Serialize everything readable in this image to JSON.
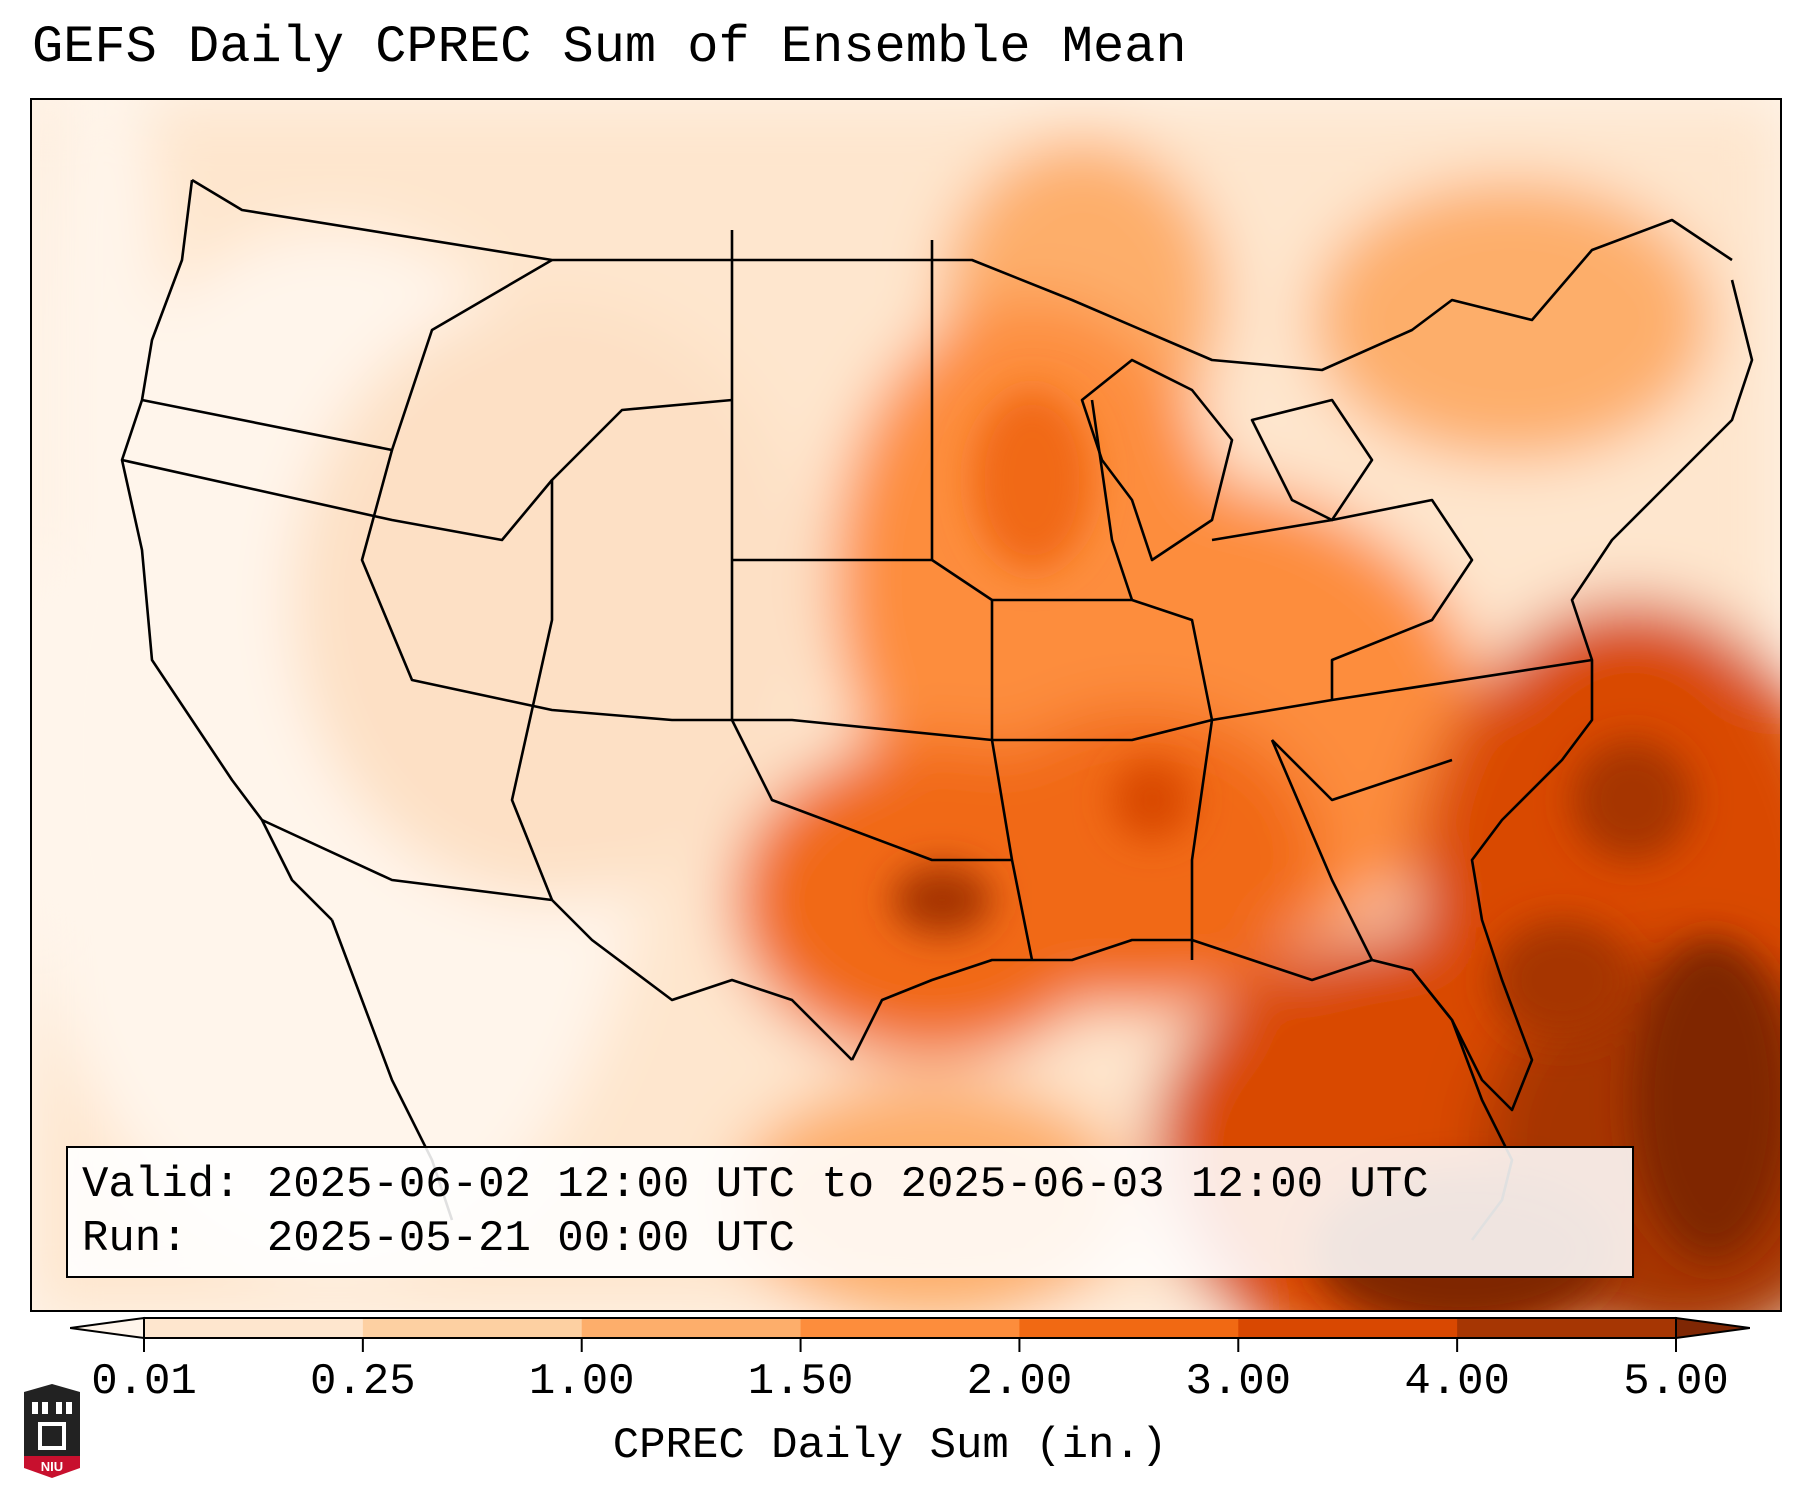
{
  "title": "GEFS Daily CPREC Sum of Ensemble Mean",
  "info": {
    "valid_label": "Valid:",
    "valid_value": "2025-06-02 12:00 UTC to 2025-06-03 12:00 UTC",
    "run_label": "Run:",
    "run_value": "2025-05-21 00:00 UTC"
  },
  "colorbar": {
    "label": "CPREC Daily Sum (in.)",
    "ticks": [
      "0.01",
      "0.25",
      "1.00",
      "1.50",
      "2.00",
      "3.00",
      "4.00",
      "5.00"
    ],
    "colors": [
      "#fff5eb",
      "#fee6ce",
      "#fdd0a2",
      "#fdae6b",
      "#fd8d3c",
      "#f16913",
      "#d94801",
      "#a63603",
      "#7f2704"
    ]
  },
  "logo": {
    "text": "NIU",
    "icon": "niu-tower-icon"
  }
}
